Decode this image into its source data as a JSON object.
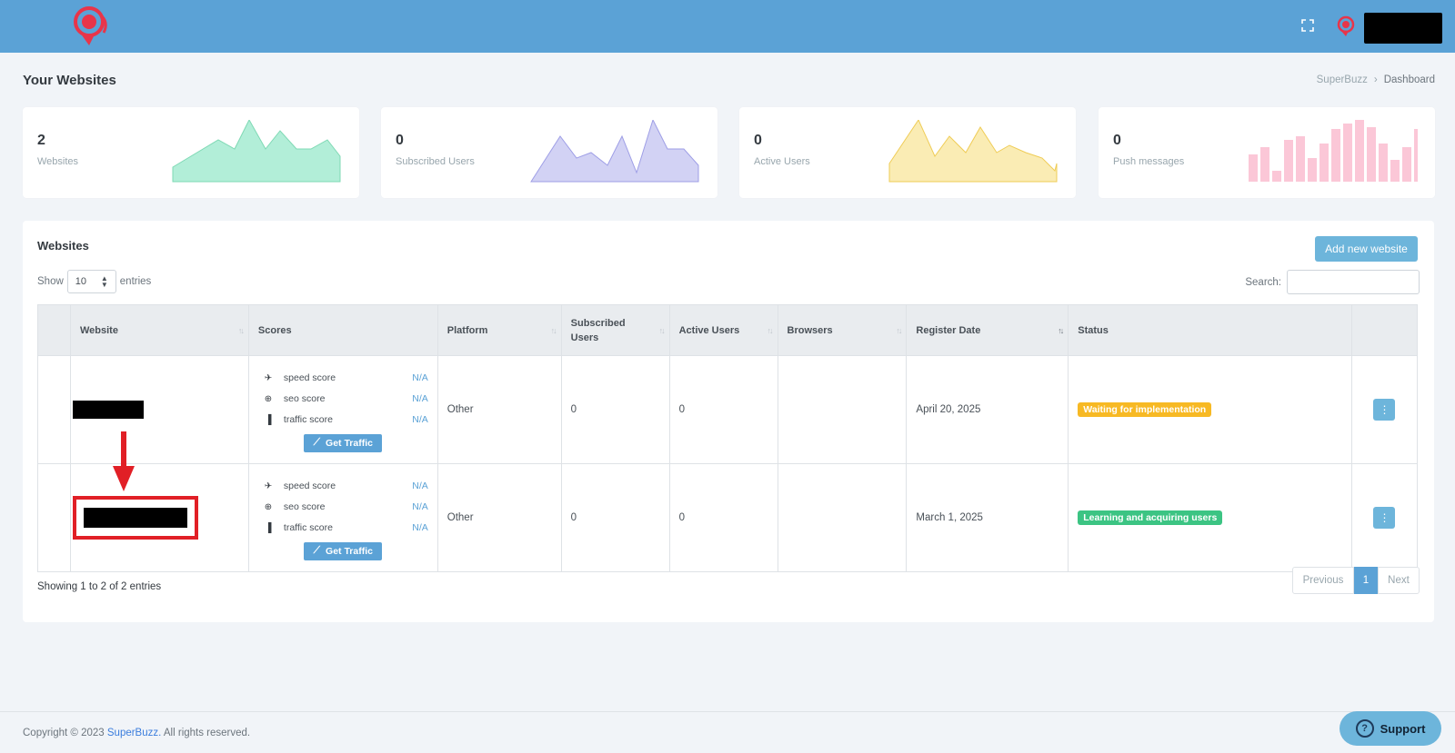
{
  "header": {
    "logo_icon": "superbuzz-logo-icon",
    "fullscreen_icon": "fullscreen-icon",
    "brand_color": "#5ba2d6"
  },
  "page": {
    "title": "Your Websites",
    "breadcrumb": [
      "SuperBuzz",
      "Dashboard"
    ],
    "breadcrumb_sep": "›"
  },
  "stats": [
    {
      "value": "2",
      "label": "Websites",
      "color": "#a8ecd3"
    },
    {
      "value": "0",
      "label": "Subscribed Users",
      "color": "#ccccf2"
    },
    {
      "value": "0",
      "label": "Active Users",
      "color": "#f9e7aa"
    },
    {
      "value": "0",
      "label": "Push messages",
      "color": "#fbc7d7"
    }
  ],
  "panel": {
    "title": "Websites",
    "add_button": "Add new website",
    "show_label": "Show",
    "entries_label": "entries",
    "page_size": "10",
    "search_label": "Search:",
    "search_value": ""
  },
  "table": {
    "columns": [
      "",
      "Website",
      "Scores",
      "Platform",
      "Subscribed Users",
      "Active Users",
      "Browsers",
      "Register Date",
      "Status",
      ""
    ],
    "score_labels": [
      "speed score",
      "seo score",
      "traffic score"
    ],
    "get_traffic": "Get Traffic",
    "rows": [
      {
        "scores": [
          "N/A",
          "N/A",
          "N/A"
        ],
        "platform": "Other",
        "subscribed": "0",
        "active": "0",
        "browsers": "",
        "date": "April 20, 2025",
        "status": "Waiting for implementation",
        "status_type": "warning"
      },
      {
        "scores": [
          "N/A",
          "N/A",
          "N/A"
        ],
        "platform": "Other",
        "subscribed": "0",
        "active": "0",
        "browsers": "",
        "date": "March 1, 2025",
        "status": "Learning and acquiring users",
        "status_type": "success"
      }
    ]
  },
  "footer_info": {
    "showing": "Showing 1 to 2 of 2 entries",
    "prev": "Previous",
    "page": "1",
    "next": "Next"
  },
  "footer": {
    "copyright_prefix": "Copyright © 2023",
    "brand": "SuperBuzz.",
    "suffix": "All rights reserved.",
    "support": "Support"
  }
}
